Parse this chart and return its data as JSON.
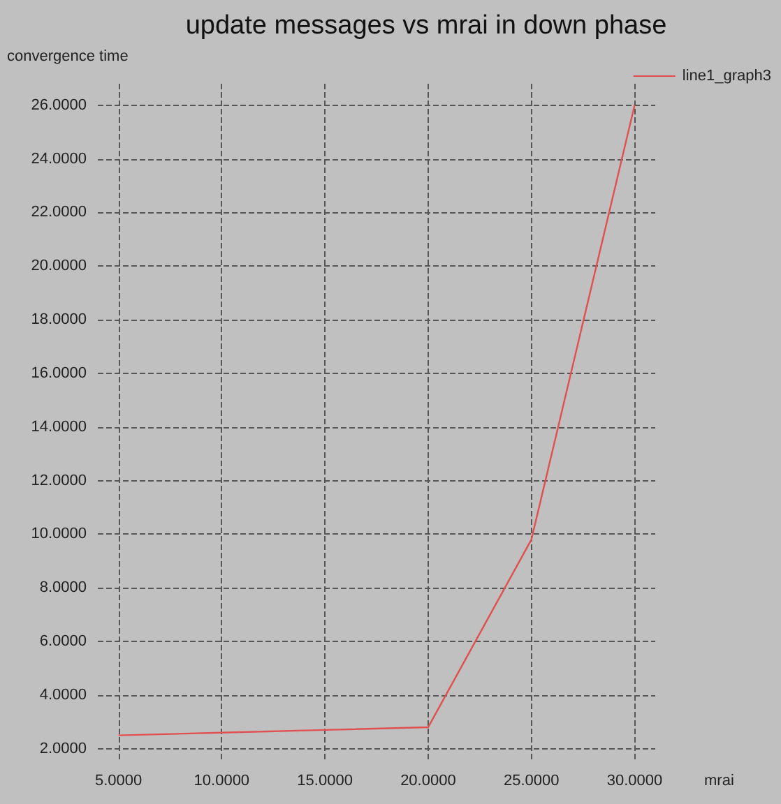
{
  "chart_data": {
    "type": "line",
    "title": "update messages vs mrai in down phase",
    "xlabel": "mrai",
    "ylabel": "convergence time",
    "x": [
      5,
      10,
      15,
      20,
      25,
      30
    ],
    "series": [
      {
        "name": "line1_graph3",
        "color": "#e05050",
        "values": [
          2.5,
          2.6,
          2.7,
          2.8,
          9.8,
          26.0
        ]
      }
    ],
    "xlim": [
      4,
      31
    ],
    "xticks": [
      {
        "value": 5,
        "label": "5.0000"
      },
      {
        "value": 10,
        "label": "10.0000"
      },
      {
        "value": 15,
        "label": "15.0000"
      },
      {
        "value": 20,
        "label": "20.0000"
      },
      {
        "value": 25,
        "label": "25.0000"
      },
      {
        "value": 30,
        "label": "30.0000"
      }
    ],
    "ylim": [
      1.5,
      26.8
    ],
    "yticks": [
      {
        "value": 2,
        "label": "2.0000"
      },
      {
        "value": 4,
        "label": "4.0000"
      },
      {
        "value": 6,
        "label": "6.0000"
      },
      {
        "value": 8,
        "label": "8.0000"
      },
      {
        "value": 10,
        "label": "10.0000"
      },
      {
        "value": 12,
        "label": "12.0000"
      },
      {
        "value": 14,
        "label": "14.0000"
      },
      {
        "value": 16,
        "label": "16.0000"
      },
      {
        "value": 18,
        "label": "18.0000"
      },
      {
        "value": 20,
        "label": "20.0000"
      },
      {
        "value": 22,
        "label": "22.0000"
      },
      {
        "value": 24,
        "label": "24.0000"
      },
      {
        "value": 26,
        "label": "26.0000"
      }
    ],
    "grid": true,
    "legend": "top right",
    "marker": "none",
    "line_style": "solid"
  }
}
